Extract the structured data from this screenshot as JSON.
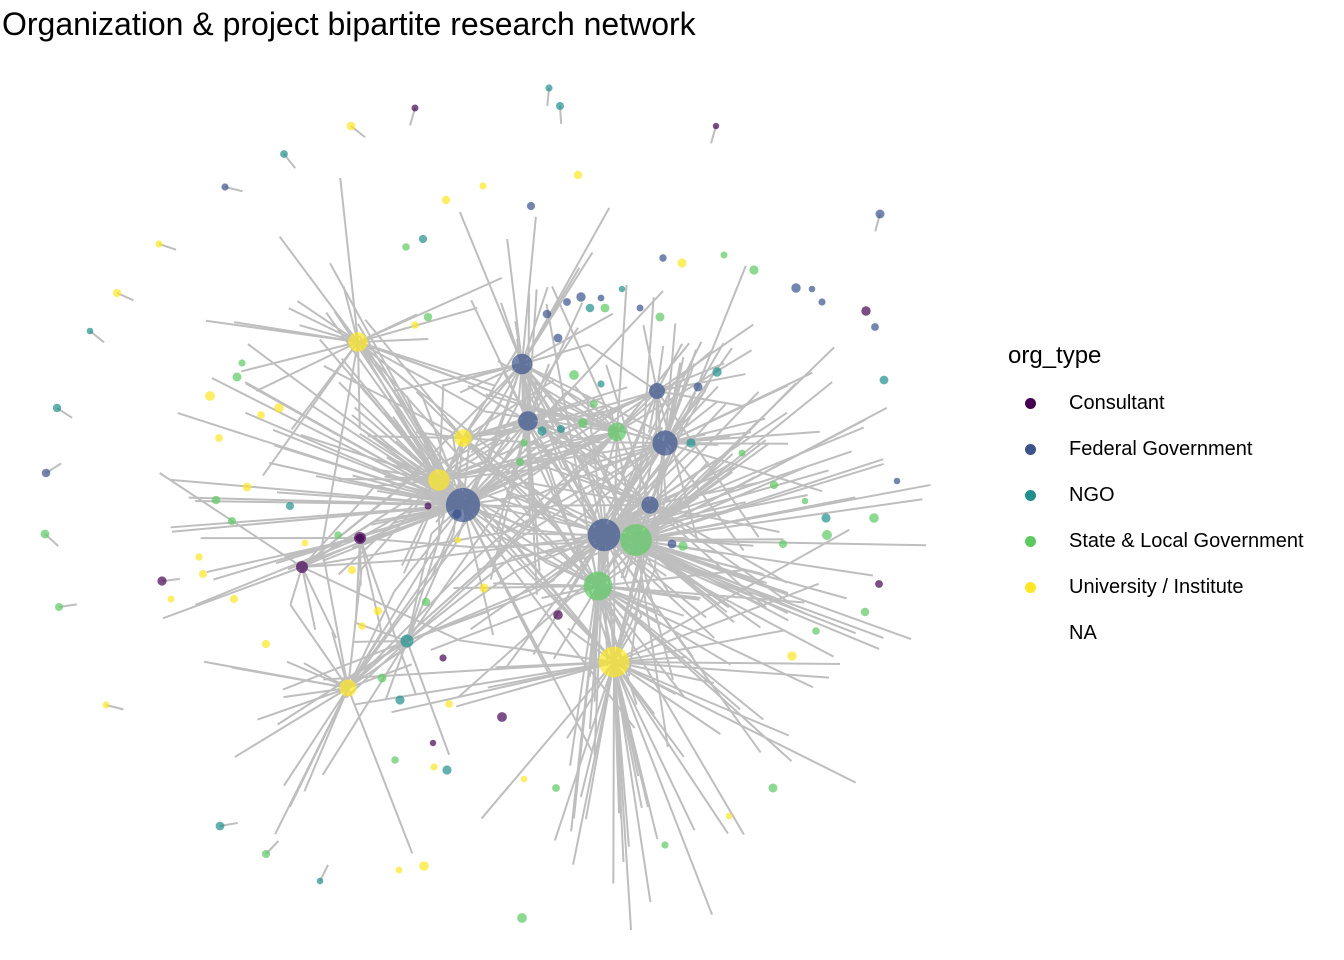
{
  "chart_data": {
    "type": "network",
    "title": "Organization & project bipartite research network",
    "legend": {
      "title": "org_type",
      "entries": [
        {
          "label": "Consultant",
          "color": "#440154"
        },
        {
          "label": "Federal Government",
          "color": "#3b528b"
        },
        {
          "label": "NGO",
          "color": "#21908c"
        },
        {
          "label": "State & Local Government",
          "color": "#5ec962"
        },
        {
          "label": "University / Institute",
          "color": "#fde725"
        },
        {
          "label": "NA",
          "color": null
        }
      ],
      "placement": "right"
    },
    "edge_color": "#bebebe",
    "node_opacity": 0.7,
    "org_nodes": [
      {
        "type": "Federal Government",
        "degree": 55
      },
      {
        "type": "Federal Government",
        "degree": 50
      },
      {
        "type": "State & Local Government",
        "degree": 48
      },
      {
        "type": "State & Local Government",
        "degree": 40
      },
      {
        "type": "University / Institute",
        "degree": 45
      },
      {
        "type": "Federal Government",
        "degree": 30
      },
      {
        "type": "Federal Government",
        "degree": 20
      },
      {
        "type": "Federal Government",
        "degree": 18
      },
      {
        "type": "University / Institute",
        "degree": 22
      },
      {
        "type": "University / Institute",
        "degree": 18
      },
      {
        "type": "University / Institute",
        "degree": 15
      },
      {
        "type": "University / Institute",
        "degree": 14
      },
      {
        "type": "State & Local Government",
        "degree": 16
      },
      {
        "type": "Federal Government",
        "degree": 14
      },
      {
        "type": "Federal Government",
        "degree": 12
      },
      {
        "type": "Consultant",
        "degree": 6
      },
      {
        "type": "NGO",
        "degree": 8
      },
      {
        "type": "Consultant",
        "degree": 5
      }
    ]
  }
}
